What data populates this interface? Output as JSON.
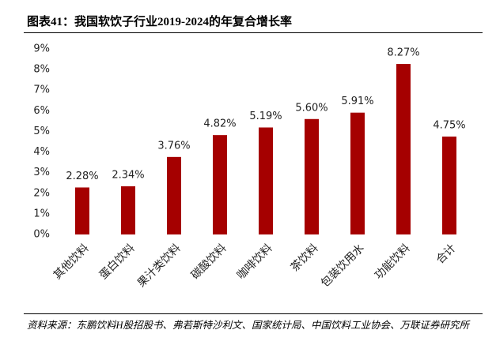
{
  "chart_data": {
    "type": "bar",
    "title": "图表41：我国软饮子行业2019-2024的年复合增长率",
    "categories": [
      "其他饮料",
      "蛋白饮料",
      "果汁类饮料",
      "碳酸饮料",
      "咖啡饮料",
      "茶饮料",
      "包装饮用水",
      "功能饮料",
      "合计"
    ],
    "values": [
      2.28,
      2.34,
      3.76,
      4.82,
      5.19,
      5.6,
      5.91,
      8.27,
      4.75
    ],
    "value_labels": [
      "2.28%",
      "2.34%",
      "3.76%",
      "4.82%",
      "5.19%",
      "5.60%",
      "5.91%",
      "8.27%",
      "4.75%"
    ],
    "color": "#a50000",
    "ylim": [
      0,
      9
    ],
    "yticks": [
      {
        "value": 0,
        "label": "0%"
      },
      {
        "value": 1,
        "label": "1%"
      },
      {
        "value": 2,
        "label": "2%"
      },
      {
        "value": 3,
        "label": "3%"
      },
      {
        "value": 4,
        "label": "4%"
      },
      {
        "value": 5,
        "label": "5%"
      },
      {
        "value": 6,
        "label": "6%"
      },
      {
        "value": 7,
        "label": "7%"
      },
      {
        "value": 8,
        "label": "8%"
      },
      {
        "value": 9,
        "label": "9%"
      }
    ],
    "grid": false,
    "source": "资料来源：东鹏饮料H股招股书、弗若斯特沙利文、国家统计局、中国饮料工业协会、万联证券研究所"
  }
}
